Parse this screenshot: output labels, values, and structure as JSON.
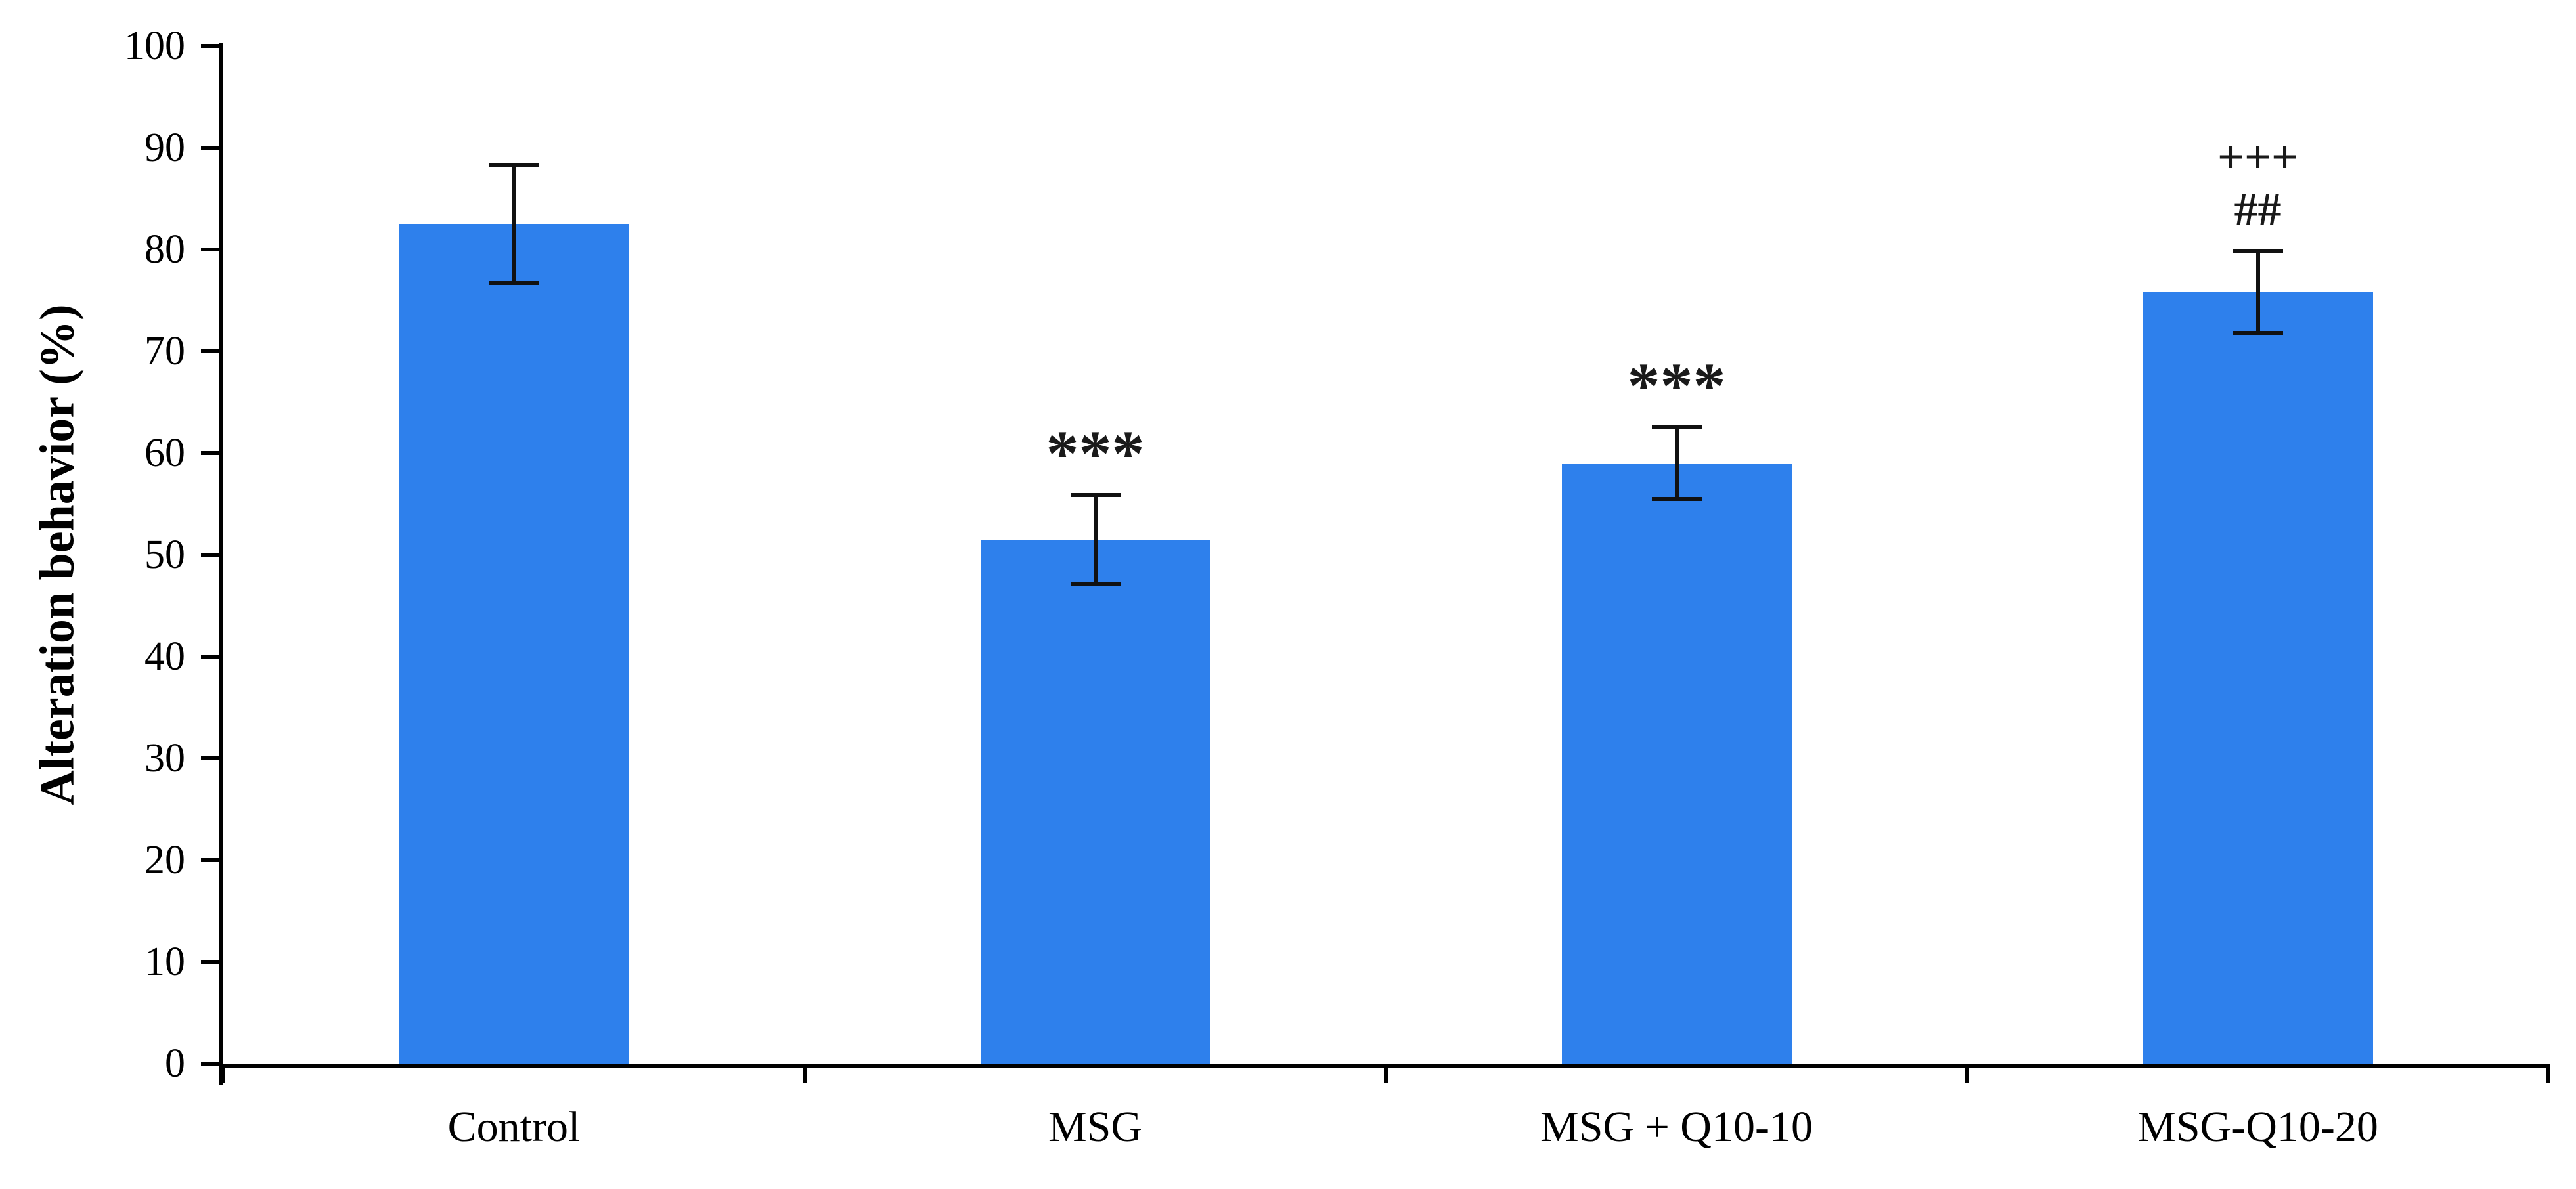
{
  "chart_data": {
    "type": "bar",
    "title": "",
    "xlabel": "",
    "ylabel": "Alteration behavior (%)",
    "ylim": [
      0,
      100
    ],
    "yticks": [
      0,
      10,
      20,
      30,
      40,
      50,
      60,
      70,
      80,
      90,
      100
    ],
    "grid": false,
    "legend": "none",
    "categories": [
      "Control",
      "MSG",
      "MSG + Q10-10",
      "MSG-Q10-20"
    ],
    "series": [
      {
        "name": "Alteration behavior (%)",
        "values": [
          82.5,
          51.5,
          59.0,
          75.8
        ],
        "errors": [
          5.8,
          4.4,
          3.5,
          4.0
        ]
      }
    ],
    "annotations": [
      {
        "category": "Control",
        "lines": []
      },
      {
        "category": "MSG",
        "lines": [
          "***"
        ]
      },
      {
        "category": "MSG + Q10-10",
        "lines": [
          "***"
        ]
      },
      {
        "category": "MSG-Q10-20",
        "lines": [
          "+++",
          "##"
        ]
      }
    ],
    "bar_color": "#2E80EC",
    "error_bar_color": "#111111",
    "axis_color": "#000000"
  }
}
